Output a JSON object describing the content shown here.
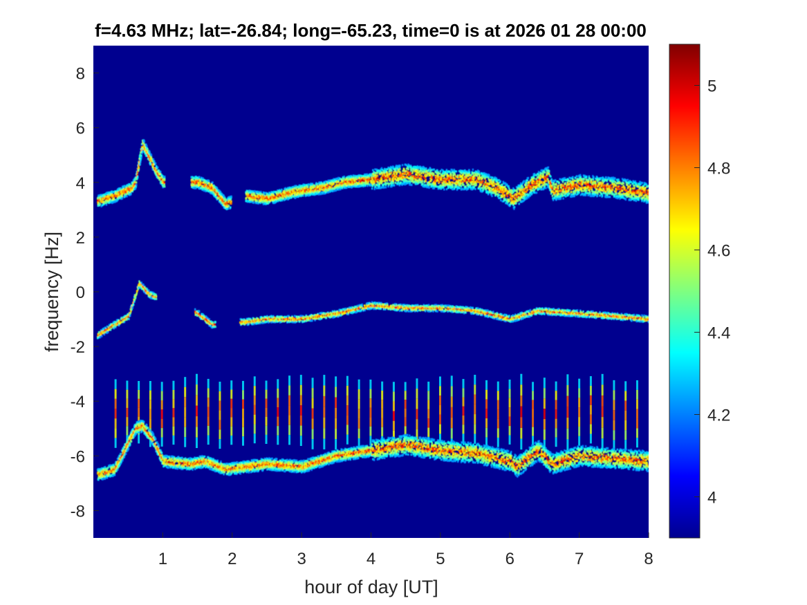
{
  "chart_data": {
    "type": "heatmap",
    "title": "f=4.63 MHz;  lat=-26.84; long=-65.23, time=0 is at 2026 01 28 00:00",
    "xlabel": "hour of day [UT]",
    "ylabel": "frequency [Hz]",
    "xlim": [
      0,
      8
    ],
    "ylim": [
      -9,
      9
    ],
    "xticks": [
      1,
      2,
      3,
      4,
      5,
      6,
      7,
      8
    ],
    "xtick_labels": [
      "1",
      "2",
      "3",
      "4",
      "5",
      "6",
      "7",
      "8"
    ],
    "yticks": [
      8,
      6,
      4,
      2,
      0,
      -2,
      -4,
      -6,
      -8
    ],
    "ytick_labels": [
      "8",
      "6",
      "4",
      "2",
      "0",
      "-2",
      "-4",
      "-6",
      "-8"
    ],
    "colormap": "jet",
    "background_color": "#00008f",
    "colorbar": {
      "limits": [
        3.9,
        5.1
      ],
      "ticks": [
        4,
        4.2,
        4.4,
        4.6,
        4.8,
        5
      ],
      "tick_labels": [
        "4",
        "4.2",
        "4.4",
        "4.6",
        "4.8",
        "5"
      ]
    },
    "traces": [
      {
        "name": "upper",
        "points": [
          [
            0.05,
            3.3
          ],
          [
            0.3,
            3.5
          ],
          [
            0.55,
            3.8
          ],
          [
            0.6,
            4.0
          ],
          [
            0.7,
            5.4
          ],
          [
            0.8,
            4.9
          ],
          [
            0.9,
            4.4
          ],
          [
            1.0,
            4.0
          ],
          [
            1.5,
            4.0
          ],
          [
            1.7,
            3.8
          ],
          [
            1.9,
            3.2
          ],
          [
            2.2,
            3.5
          ],
          [
            2.5,
            3.4
          ],
          [
            2.8,
            3.6
          ],
          [
            3.0,
            3.7
          ],
          [
            3.3,
            3.8
          ],
          [
            3.6,
            4.0
          ],
          [
            4.0,
            4.1
          ],
          [
            4.5,
            4.3
          ],
          [
            5.0,
            4.1
          ],
          [
            5.5,
            4.1
          ],
          [
            5.8,
            3.8
          ],
          [
            6.05,
            3.4
          ],
          [
            6.3,
            3.9
          ],
          [
            6.55,
            4.2
          ],
          [
            6.6,
            3.7
          ],
          [
            7.0,
            3.9
          ],
          [
            7.5,
            3.8
          ],
          [
            8.0,
            3.6
          ]
        ]
      },
      {
        "name": "middle",
        "points": [
          [
            0.05,
            -1.6
          ],
          [
            0.3,
            -1.2
          ],
          [
            0.5,
            -0.9
          ],
          [
            0.65,
            0.3
          ],
          [
            0.8,
            -0.1
          ],
          [
            1.5,
            -0.8
          ],
          [
            1.7,
            -1.2
          ],
          [
            2.2,
            -1.1
          ],
          [
            2.5,
            -1.0
          ],
          [
            3.0,
            -1.0
          ],
          [
            3.5,
            -0.8
          ],
          [
            4.0,
            -0.5
          ],
          [
            4.5,
            -0.6
          ],
          [
            5.0,
            -0.6
          ],
          [
            5.5,
            -0.7
          ],
          [
            6.0,
            -1.0
          ],
          [
            6.4,
            -0.7
          ],
          [
            7.0,
            -0.8
          ],
          [
            7.5,
            -0.9
          ],
          [
            8.0,
            -1.0
          ]
        ]
      },
      {
        "name": "lower",
        "points": [
          [
            0.05,
            -6.7
          ],
          [
            0.3,
            -6.5
          ],
          [
            0.6,
            -5.0
          ],
          [
            0.7,
            -4.9
          ],
          [
            0.85,
            -5.4
          ],
          [
            1.0,
            -6.2
          ],
          [
            1.4,
            -6.3
          ],
          [
            1.6,
            -6.2
          ],
          [
            1.9,
            -6.5
          ],
          [
            2.2,
            -6.4
          ],
          [
            2.5,
            -6.3
          ],
          [
            3.0,
            -6.4
          ],
          [
            3.5,
            -6.0
          ],
          [
            4.0,
            -5.8
          ],
          [
            4.5,
            -5.6
          ],
          [
            5.0,
            -5.8
          ],
          [
            5.5,
            -5.9
          ],
          [
            6.0,
            -6.2
          ],
          [
            6.1,
            -6.4
          ],
          [
            6.4,
            -5.8
          ],
          [
            6.6,
            -6.3
          ],
          [
            7.0,
            -6.0
          ],
          [
            7.5,
            -6.1
          ],
          [
            8.0,
            -6.2
          ]
        ]
      }
    ],
    "stripe_band": [
      -5.8,
      -3.0
    ],
    "stripe_spacing_hours": 0.167
  }
}
